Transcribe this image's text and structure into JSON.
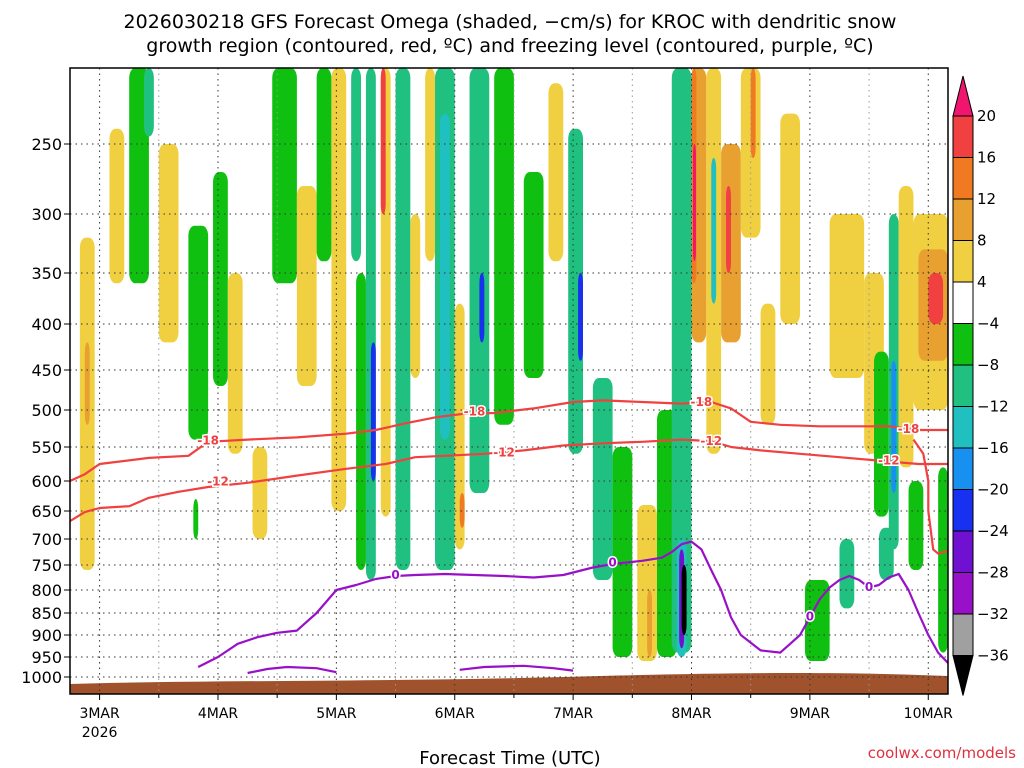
{
  "title_lines": [
    "2026030218 GFS Forecast Omega (shaded, −cm/s) for KROC with dendritic snow",
    "growth region (contoured, red, ºC) and freezing level (contoured, purple, ºC)"
  ],
  "credit": "coolwx.com/models",
  "chart_data": {
    "type": "heatmap",
    "xlabel": "Forecast Time (UTC)",
    "x_ticks": [
      {
        "label": "3MAR",
        "sub": "2026",
        "t": 0
      },
      {
        "label": "4MAR",
        "t": 24
      },
      {
        "label": "5MAR",
        "t": 48
      },
      {
        "label": "6MAR",
        "t": 72
      },
      {
        "label": "7MAR",
        "t": 96
      },
      {
        "label": "8MAR",
        "t": 120
      },
      {
        "label": "9MAR",
        "t": 144
      },
      {
        "label": "10MAR",
        "t": 168
      }
    ],
    "x_range_hours": [
      -6,
      172
    ],
    "y_pressure_levels": [
      250,
      300,
      350,
      400,
      450,
      500,
      550,
      600,
      650,
      700,
      750,
      800,
      850,
      900,
      950,
      1000
    ],
    "y_range_hpa": [
      200,
      1025
    ],
    "grid": true,
    "colorbar": {
      "labels": [
        "20",
        "16",
        "12",
        "8",
        "4",
        "−4",
        "−8",
        "−12",
        "−16",
        "−20",
        "−24",
        "−28",
        "−32",
        "−36"
      ],
      "colors": [
        "#f0156f",
        "#f04040",
        "#f07a22",
        "#e8a030",
        "#f0d040",
        "#ffffff",
        "#10c010",
        "#20c080",
        "#20c0c0",
        "#1890f0",
        "#1830f0",
        "#7010d0",
        "#9810c8",
        "#a0a0a0",
        "#000000"
      ]
    },
    "dgz_contours": [
      {
        "label": "-18",
        "color": "#f04040",
        "points": [
          [
            -6,
            600
          ],
          [
            -3,
            590
          ],
          [
            0,
            575
          ],
          [
            10,
            566
          ],
          [
            18,
            563
          ],
          [
            22,
            543
          ],
          [
            30,
            540
          ],
          [
            40,
            537
          ],
          [
            50,
            532
          ],
          [
            56,
            527
          ],
          [
            62,
            518
          ],
          [
            68,
            510
          ],
          [
            74,
            505
          ],
          [
            80,
            504
          ],
          [
            88,
            498
          ],
          [
            96,
            490
          ],
          [
            102,
            488
          ],
          [
            110,
            490
          ],
          [
            118,
            492
          ],
          [
            124,
            490
          ],
          [
            128,
            498
          ],
          [
            132,
            516
          ],
          [
            138,
            520
          ],
          [
            146,
            522
          ],
          [
            154,
            522
          ],
          [
            160,
            522
          ],
          [
            166,
            527
          ],
          [
            172,
            527
          ]
        ],
        "label_at": [
          [
            22,
            541
          ],
          [
            76,
            502
          ],
          [
            122,
            490
          ],
          [
            164,
            526
          ]
        ]
      },
      {
        "label": "-12",
        "color": "#f04040",
        "points": [
          [
            -6,
            668
          ],
          [
            -3,
            652
          ],
          [
            0,
            645
          ],
          [
            6,
            642
          ],
          [
            10,
            628
          ],
          [
            16,
            618
          ],
          [
            22,
            610
          ],
          [
            30,
            603
          ],
          [
            40,
            592
          ],
          [
            50,
            582
          ],
          [
            58,
            575
          ],
          [
            64,
            565
          ],
          [
            70,
            563
          ],
          [
            78,
            560
          ],
          [
            86,
            555
          ],
          [
            94,
            548
          ],
          [
            102,
            545
          ],
          [
            110,
            543
          ],
          [
            118,
            540
          ],
          [
            124,
            542
          ],
          [
            128,
            550
          ],
          [
            134,
            555
          ],
          [
            142,
            560
          ],
          [
            150,
            565
          ],
          [
            158,
            570
          ],
          [
            166,
            575
          ],
          [
            172,
            575
          ]
        ],
        "label_at": [
          [
            24,
            601
          ],
          [
            82,
            558
          ],
          [
            124,
            542
          ],
          [
            160,
            570
          ]
        ]
      },
      {
        "label": "-12",
        "color": "#f04040",
        "points": [
          [
            165,
            540
          ],
          [
            167,
            560
          ],
          [
            168,
            600
          ],
          [
            168,
            650
          ],
          [
            169,
            720
          ],
          [
            170,
            728
          ],
          [
            172,
            723
          ]
        ],
        "label_at": []
      },
      {
        "label": "0",
        "color": "#9810c8",
        "points": [
          [
            20,
            975
          ],
          [
            24,
            950
          ],
          [
            28,
            920
          ],
          [
            32,
            905
          ],
          [
            36,
            895
          ],
          [
            40,
            890
          ],
          [
            44,
            850
          ],
          [
            48,
            800
          ],
          [
            52,
            790
          ],
          [
            56,
            778
          ],
          [
            60,
            772
          ],
          [
            64,
            770
          ],
          [
            70,
            768
          ],
          [
            76,
            770
          ],
          [
            82,
            772
          ],
          [
            88,
            775
          ],
          [
            94,
            770
          ],
          [
            100,
            755
          ],
          [
            104,
            748
          ],
          [
            110,
            742
          ],
          [
            114,
            736
          ],
          [
            116,
            725
          ],
          [
            118,
            710
          ],
          [
            120,
            705
          ],
          [
            122,
            720
          ],
          [
            124,
            760
          ],
          [
            126,
            800
          ],
          [
            128,
            860
          ],
          [
            130,
            900
          ],
          [
            134,
            935
          ],
          [
            138,
            940
          ],
          [
            140,
            920
          ],
          [
            142,
            900
          ],
          [
            144,
            860
          ],
          [
            146,
            820
          ],
          [
            148,
            795
          ],
          [
            150,
            780
          ],
          [
            152,
            772
          ],
          [
            154,
            780
          ],
          [
            156,
            795
          ],
          [
            158,
            790
          ],
          [
            160,
            775
          ],
          [
            162,
            768
          ],
          [
            164,
            800
          ],
          [
            166,
            850
          ],
          [
            168,
            900
          ],
          [
            170,
            940
          ],
          [
            172,
            965
          ]
        ],
        "label_at": [
          [
            60,
            770
          ],
          [
            104,
            745
          ],
          [
            156,
            794
          ],
          [
            144,
            858
          ]
        ]
      },
      {
        "label": "0",
        "color": "#9810c8",
        "points": [
          [
            30,
            990
          ],
          [
            34,
            980
          ],
          [
            38,
            975
          ],
          [
            44,
            978
          ],
          [
            48,
            988
          ]
        ],
        "label_at": []
      },
      {
        "label": "0",
        "color": "#9810c8",
        "points": [
          [
            73,
            982
          ],
          [
            78,
            975
          ],
          [
            86,
            972
          ],
          [
            92,
            978
          ],
          [
            96,
            984
          ]
        ],
        "label_at": []
      }
    ],
    "omega_cells": [
      {
        "t0": -4,
        "t1": -1,
        "p0": 320,
        "p1": 760,
        "v": 5
      },
      {
        "t0": -3,
        "t1": -2,
        "p0": 420,
        "p1": 520,
        "v": 9
      },
      {
        "t0": 2,
        "t1": 5,
        "p0": 240,
        "p1": 360,
        "v": 5
      },
      {
        "t0": 6,
        "t1": 10,
        "p0": 200,
        "p1": 360,
        "v": -6
      },
      {
        "t0": 9,
        "t1": 11,
        "p0": 200,
        "p1": 245,
        "v": -10
      },
      {
        "t0": 12,
        "t1": 16,
        "p0": 250,
        "p1": 420,
        "v": 5
      },
      {
        "t0": 18,
        "t1": 22,
        "p0": 310,
        "p1": 540,
        "v": -6
      },
      {
        "t0": 23,
        "t1": 26,
        "p0": 270,
        "p1": 470,
        "v": -6
      },
      {
        "t0": 19,
        "t1": 20,
        "p0": 630,
        "p1": 700,
        "v": -6
      },
      {
        "t0": 26,
        "t1": 29,
        "p0": 350,
        "p1": 560,
        "v": 5
      },
      {
        "t0": 31,
        "t1": 34,
        "p0": 550,
        "p1": 700,
        "v": 5
      },
      {
        "t0": 35,
        "t1": 40,
        "p0": 200,
        "p1": 360,
        "v": -6
      },
      {
        "t0": 40,
        "t1": 44,
        "p0": 280,
        "p1": 470,
        "v": 5
      },
      {
        "t0": 44,
        "t1": 47,
        "p0": 200,
        "p1": 340,
        "v": -6
      },
      {
        "t0": 47,
        "t1": 50,
        "p0": 200,
        "p1": 650,
        "v": 5
      },
      {
        "t0": 51,
        "t1": 53,
        "p0": 200,
        "p1": 340,
        "v": -10
      },
      {
        "t0": 52,
        "t1": 54,
        "p0": 350,
        "p1": 760,
        "v": -6
      },
      {
        "t0": 54,
        "t1": 56,
        "p0": 200,
        "p1": 780,
        "v": -8
      },
      {
        "t0": 55,
        "t1": 56,
        "p0": 420,
        "p1": 600,
        "v": -22
      },
      {
        "t0": 57,
        "t1": 59,
        "p0": 200,
        "p1": 660,
        "v": 5
      },
      {
        "t0": 57,
        "t1": 58,
        "p0": 200,
        "p1": 300,
        "v": 16
      },
      {
        "t0": 60,
        "t1": 63,
        "p0": 200,
        "p1": 760,
        "v": -8
      },
      {
        "t0": 63,
        "t1": 65,
        "p0": 300,
        "p1": 460,
        "v": 5
      },
      {
        "t0": 66,
        "t1": 68,
        "p0": 200,
        "p1": 340,
        "v": 5
      },
      {
        "t0": 68,
        "t1": 72,
        "p0": 200,
        "p1": 760,
        "v": -10
      },
      {
        "t0": 69,
        "t1": 71,
        "p0": 230,
        "p1": 540,
        "v": -14
      },
      {
        "t0": 72,
        "t1": 74,
        "p0": 380,
        "p1": 720,
        "v": 5
      },
      {
        "t0": 73,
        "t1": 74,
        "p0": 620,
        "p1": 680,
        "v": 12
      },
      {
        "t0": 75,
        "t1": 79,
        "p0": 200,
        "p1": 620,
        "v": -8
      },
      {
        "t0": 77,
        "t1": 78,
        "p0": 350,
        "p1": 420,
        "v": -20
      },
      {
        "t0": 80,
        "t1": 84,
        "p0": 200,
        "p1": 520,
        "v": -6
      },
      {
        "t0": 86,
        "t1": 90,
        "p0": 270,
        "p1": 460,
        "v": -6
      },
      {
        "t0": 91,
        "t1": 94,
        "p0": 210,
        "p1": 340,
        "v": 5
      },
      {
        "t0": 95,
        "t1": 98,
        "p0": 240,
        "p1": 560,
        "v": -8
      },
      {
        "t0": 97,
        "t1": 98,
        "p0": 350,
        "p1": 440,
        "v": -22
      },
      {
        "t0": 100,
        "t1": 104,
        "p0": 460,
        "p1": 780,
        "v": -8
      },
      {
        "t0": 104,
        "t1": 108,
        "p0": 550,
        "p1": 950,
        "v": -6
      },
      {
        "t0": 109,
        "t1": 113,
        "p0": 640,
        "p1": 960,
        "v": 5
      },
      {
        "t0": 111,
        "t1": 112,
        "p0": 800,
        "p1": 950,
        "v": 10
      },
      {
        "t0": 113,
        "t1": 117,
        "p0": 500,
        "p1": 950,
        "v": -6
      },
      {
        "t0": 116,
        "t1": 120,
        "p0": 200,
        "p1": 940,
        "v": -10
      },
      {
        "t0": 117,
        "t1": 119,
        "p0": 700,
        "p1": 950,
        "v": -14
      },
      {
        "t0": 117.5,
        "t1": 118.5,
        "p0": 720,
        "p1": 930,
        "v": -26
      },
      {
        "t0": 118,
        "t1": 119,
        "p0": 750,
        "p1": 900,
        "v": -40
      },
      {
        "t0": 120,
        "t1": 123,
        "p0": 200,
        "p1": 420,
        "v": 10
      },
      {
        "t0": 120,
        "t1": 121,
        "p0": 200,
        "p1": 360,
        "v": 14
      },
      {
        "t0": 120.3,
        "t1": 120.9,
        "p0": 250,
        "p1": 340,
        "v": 22
      },
      {
        "t0": 123,
        "t1": 126,
        "p0": 200,
        "p1": 560,
        "v": 5
      },
      {
        "t0": 124,
        "t1": 125,
        "p0": 260,
        "p1": 380,
        "v": -14
      },
      {
        "t0": 126,
        "t1": 130,
        "p0": 250,
        "p1": 420,
        "v": 9
      },
      {
        "t0": 127,
        "t1": 128,
        "p0": 280,
        "p1": 350,
        "v": 16
      },
      {
        "t0": 130,
        "t1": 134,
        "p0": 200,
        "p1": 320,
        "v": 5
      },
      {
        "t0": 132,
        "t1": 133,
        "p0": 200,
        "p1": 260,
        "v": 14
      },
      {
        "t0": 134,
        "t1": 137,
        "p0": 380,
        "p1": 520,
        "v": 5
      },
      {
        "t0": 138,
        "t1": 142,
        "p0": 230,
        "p1": 400,
        "v": 5
      },
      {
        "t0": 143,
        "t1": 148,
        "p0": 780,
        "p1": 960,
        "v": -6
      },
      {
        "t0": 148,
        "t1": 155,
        "p0": 300,
        "p1": 460,
        "v": 5
      },
      {
        "t0": 150,
        "t1": 153,
        "p0": 700,
        "p1": 840,
        "v": -8
      },
      {
        "t0": 155,
        "t1": 159,
        "p0": 350,
        "p1": 560,
        "v": 5
      },
      {
        "t0": 157,
        "t1": 160,
        "p0": 430,
        "p1": 660,
        "v": -6
      },
      {
        "t0": 158,
        "t1": 161,
        "p0": 680,
        "p1": 780,
        "v": -8
      },
      {
        "t0": 160,
        "t1": 162,
        "p0": 300,
        "p1": 720,
        "v": -10
      },
      {
        "t0": 160.5,
        "t1": 161.5,
        "p0": 440,
        "p1": 620,
        "v": -18
      },
      {
        "t0": 162,
        "t1": 165,
        "p0": 280,
        "p1": 580,
        "v": 5
      },
      {
        "t0": 164,
        "t1": 167,
        "p0": 600,
        "p1": 760,
        "v": -6
      },
      {
        "t0": 165,
        "t1": 172,
        "p0": 300,
        "p1": 500,
        "v": 6
      },
      {
        "t0": 166,
        "t1": 172,
        "p0": 330,
        "p1": 440,
        "v": 10
      },
      {
        "t0": 168,
        "t1": 171,
        "p0": 350,
        "p1": 400,
        "v": 18
      },
      {
        "t0": 170,
        "t1": 172,
        "p0": 580,
        "p1": 940,
        "v": -6
      }
    ]
  }
}
